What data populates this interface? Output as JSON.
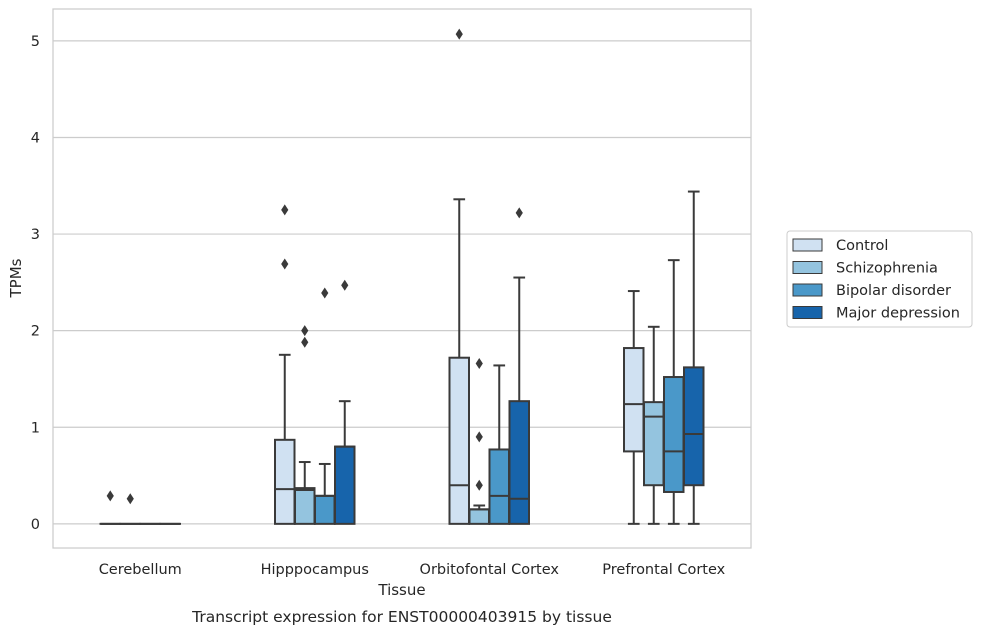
{
  "chart_data": {
    "type": "box",
    "caption": "Transcript expression for ENST00000403915 by tissue",
    "xlabel": "Tissue",
    "ylabel": "TPMs",
    "ylim": [
      -0.25,
      5.33
    ],
    "yticks": [
      0,
      1,
      2,
      3,
      4,
      5
    ],
    "grid": "horizontal",
    "legend_position": "right",
    "categories": [
      "Cerebellum",
      "Hipppocampus",
      "Orbitofontal Cortex",
      "Prefrontal Cortex"
    ],
    "series": [
      {
        "name": "Control",
        "color": "#d0e1f2",
        "boxes": [
          {
            "whislo": 0,
            "q1": 0,
            "med": 0,
            "q3": 0,
            "whishi": 0,
            "fliers": [
              0.29
            ]
          },
          {
            "whislo": 0,
            "q1": 0,
            "med": 0.36,
            "q3": 0.87,
            "whishi": 1.75,
            "fliers": [
              2.69,
              3.25
            ]
          },
          {
            "whislo": 0,
            "q1": 0,
            "med": 0.4,
            "q3": 1.72,
            "whishi": 3.36,
            "fliers": [
              5.07
            ]
          },
          {
            "whislo": 0,
            "q1": 0.75,
            "med": 1.24,
            "q3": 1.82,
            "whishi": 2.41,
            "fliers": []
          }
        ]
      },
      {
        "name": "Schizophrenia",
        "color": "#94c4df",
        "boxes": [
          {
            "whislo": 0,
            "q1": 0,
            "med": 0,
            "q3": 0,
            "whishi": 0,
            "fliers": [
              0.26
            ]
          },
          {
            "whislo": 0,
            "q1": 0,
            "med": 0.35,
            "q3": 0.37,
            "whishi": 0.64,
            "fliers": [
              1.88,
              2.0
            ]
          },
          {
            "whislo": 0,
            "q1": 0,
            "med": 0.15,
            "q3": 0.15,
            "whishi": 0.19,
            "fliers": [
              0.4,
              0.9,
              1.66
            ]
          },
          {
            "whislo": 0,
            "q1": 0.4,
            "med": 1.11,
            "q3": 1.26,
            "whishi": 2.04,
            "fliers": []
          }
        ]
      },
      {
        "name": "Bipolar disorder",
        "color": "#4a98c9",
        "boxes": [
          {
            "whislo": 0,
            "q1": 0,
            "med": 0,
            "q3": 0,
            "whishi": 0,
            "fliers": []
          },
          {
            "whislo": 0,
            "q1": 0,
            "med": 0.29,
            "q3": 0.29,
            "whishi": 0.62,
            "fliers": [
              2.39
            ]
          },
          {
            "whislo": 0,
            "q1": 0,
            "med": 0.29,
            "q3": 0.77,
            "whishi": 1.64,
            "fliers": []
          },
          {
            "whislo": 0,
            "q1": 0.33,
            "med": 0.75,
            "q3": 1.52,
            "whishi": 2.73,
            "fliers": []
          }
        ]
      },
      {
        "name": "Major depression",
        "color": "#1764ab",
        "boxes": [
          {
            "whislo": 0,
            "q1": 0,
            "med": 0,
            "q3": 0,
            "whishi": 0,
            "fliers": []
          },
          {
            "whislo": 0,
            "q1": 0,
            "med": 0.8,
            "q3": 0.8,
            "whishi": 1.27,
            "fliers": [
              2.47
            ]
          },
          {
            "whislo": 0,
            "q1": 0,
            "med": 0.26,
            "q3": 1.27,
            "whishi": 2.55,
            "fliers": [
              3.22
            ]
          },
          {
            "whislo": 0,
            "q1": 0.4,
            "med": 0.93,
            "q3": 1.62,
            "whishi": 3.44,
            "fliers": []
          }
        ]
      }
    ]
  }
}
